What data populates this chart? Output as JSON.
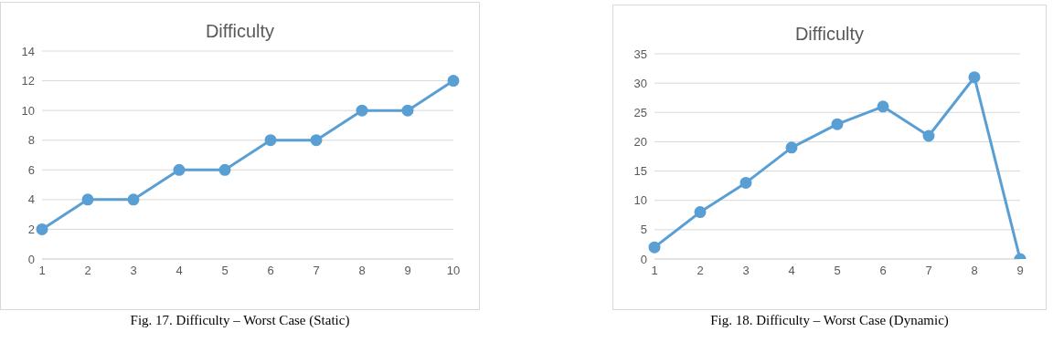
{
  "chart_data": [
    {
      "type": "line",
      "title": "Difficulty",
      "categories": [
        "1",
        "2",
        "3",
        "4",
        "5",
        "6",
        "7",
        "8",
        "9",
        "10"
      ],
      "series": [
        {
          "color": "#5a9fd4",
          "values": [
            2,
            4,
            4,
            6,
            6,
            8,
            8,
            10,
            10,
            12
          ]
        }
      ],
      "ylim": [
        0,
        14
      ],
      "yticks": [
        0,
        2,
        4,
        6,
        8,
        10,
        12,
        14
      ],
      "grid": "y",
      "legend": false,
      "marker": "circle",
      "line_style": "solid",
      "annotations": [
        "Fig. 17. Difficulty – Worst Case (Static)"
      ]
    },
    {
      "type": "line",
      "title": "Difficulty",
      "categories": [
        "1",
        "2",
        "3",
        "4",
        "5",
        "6",
        "7",
        "8",
        "9"
      ],
      "series": [
        {
          "color": "#5a9fd4",
          "values": [
            2,
            8,
            13,
            19,
            23,
            26,
            21,
            31,
            0
          ]
        }
      ],
      "ylim": [
        0,
        35
      ],
      "yticks": [
        0,
        5,
        10,
        15,
        20,
        25,
        30,
        35
      ],
      "grid": "y",
      "legend": false,
      "marker": "circle",
      "line_style": "solid",
      "annotations": [
        "Fig. 18. Difficulty – Worst Case (Dynamic)"
      ]
    }
  ]
}
